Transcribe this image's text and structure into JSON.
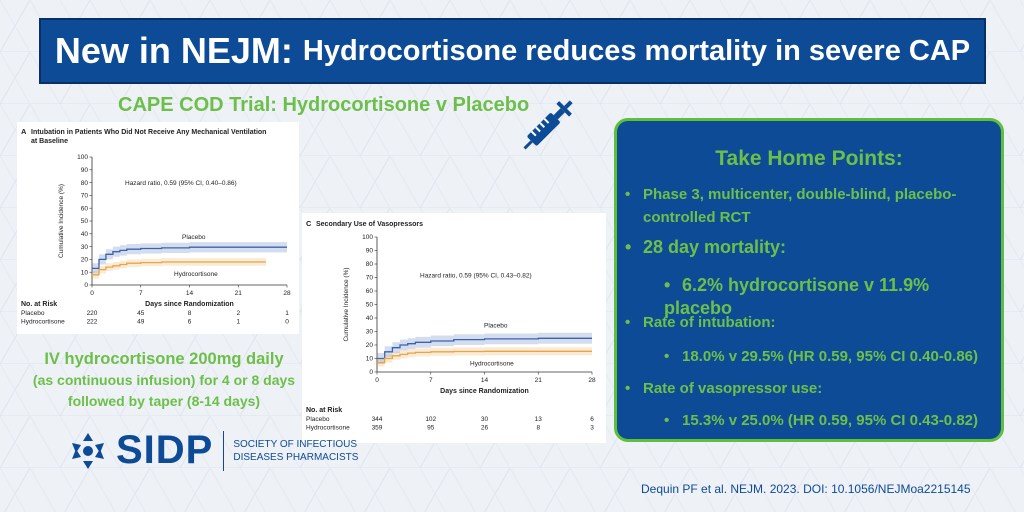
{
  "banner": {
    "title_strong": "New in NEJM:",
    "title_rest": "Hydrocortisone reduces mortality in severe CAP"
  },
  "trial_title": "CAPE COD Trial: Hydrocortisone v Placebo",
  "icons": {
    "syringe": "syringe-icon",
    "sidp_logo": "sidp-logo-icon"
  },
  "colors": {
    "navy": "#0d4b96",
    "green": "#6cc04a",
    "placebo": "#3a63ad",
    "hydrocortisone": "#e8a445"
  },
  "dosing": {
    "line1": "IV hydrocortisone 200mg daily",
    "line2": "(as continuous infusion) for 4 or 8 days",
    "line3": "followed by taper (8-14 days)"
  },
  "sidp": {
    "name": "SIDP",
    "society_line1": "SOCIETY OF INFECTIOUS",
    "society_line2": "DISEASES PHARMACISTS"
  },
  "take_home": {
    "heading": "Take Home Points:",
    "point1_l1": "Phase 3, multicenter, double-blind, placebo-",
    "point1_l2": "controlled RCT",
    "point2": "28 day mortality:",
    "point2_sub": "6.2% hydrocortisone  v 11.9% placebo",
    "point3": "Rate of intubation:",
    "point3_sub": "18.0% v 29.5% (HR 0.59, 95% CI 0.40-0.86)",
    "point4": "Rate of vasopressor use:",
    "point4_sub": "15.3% v 25.0% (HR 0.59, 95% CI 0.43-0.82)"
  },
  "reference": "Dequin PF et al. NEJM. 2023. DOI: 10.1056/NEJMoa2215145",
  "chart_data": [
    {
      "type": "line",
      "panel_letter": "A",
      "title_l1": "Intubation in Patients Who Did Not Receive Any Mechanical Ventilation",
      "title_l2": "at Baseline",
      "ylabel": "Cumulative Incidence (%)",
      "xlabel": "Days since Randomization",
      "xlim": [
        0,
        28
      ],
      "ylim": [
        0,
        100
      ],
      "x_ticks": [
        0,
        7,
        14,
        21,
        28
      ],
      "y_ticks": [
        0,
        10,
        20,
        30,
        40,
        50,
        60,
        70,
        80,
        90,
        100
      ],
      "hazard_text": "Hazard ratio, 0.59 (95% CI, 0.40–0.86)",
      "series": [
        {
          "name": "Placebo",
          "color": "#3a63ad",
          "x": [
            0,
            1,
            2,
            3,
            4,
            5,
            7,
            10,
            14,
            21,
            28
          ],
          "y": [
            13,
            20,
            24,
            26,
            27,
            28,
            28.5,
            29,
            29.5,
            29.5,
            29.5
          ],
          "ci_width": 4
        },
        {
          "name": "Hydrocortisone",
          "color": "#e8a445",
          "x": [
            0,
            1,
            2,
            3,
            4,
            5,
            7,
            10,
            14,
            21,
            25
          ],
          "y": [
            8,
            12,
            14,
            15,
            16,
            17,
            17.5,
            18,
            18,
            18,
            18
          ],
          "ci_width": 3
        }
      ],
      "at_risk_title": "No. at Risk",
      "at_risk": [
        {
          "label": "Placebo",
          "values": [
            "220",
            "45",
            "8",
            "2",
            "1"
          ]
        },
        {
          "label": "Hydrocortisone",
          "values": [
            "222",
            "49",
            "6",
            "1",
            "0"
          ]
        }
      ]
    },
    {
      "type": "line",
      "panel_letter": "C",
      "title_l1": "Secondary Use of Vasopressors",
      "ylabel": "Cumulative Incidence (%)",
      "xlabel": "Days since Randomization",
      "xlim": [
        0,
        28
      ],
      "ylim": [
        0,
        100
      ],
      "x_ticks": [
        0,
        7,
        14,
        21,
        28
      ],
      "y_ticks": [
        0,
        10,
        20,
        30,
        40,
        50,
        60,
        70,
        80,
        90,
        100
      ],
      "hazard_text": "Hazard ratio, 0.59 (95% CI, 0.43–0.82)",
      "series": [
        {
          "name": "Placebo",
          "color": "#3a63ad",
          "x": [
            0,
            1,
            2,
            3,
            4,
            5,
            7,
            10,
            14,
            21,
            28
          ],
          "y": [
            10,
            15,
            18,
            20,
            21,
            22,
            23,
            24,
            24.5,
            25,
            25
          ],
          "ci_width": 4
        },
        {
          "name": "Hydrocortisone",
          "color": "#e8a445",
          "x": [
            0,
            1,
            2,
            3,
            4,
            5,
            7,
            10,
            14,
            21,
            28
          ],
          "y": [
            7,
            10,
            12,
            13,
            14,
            14.5,
            15,
            15.2,
            15.3,
            15.3,
            15.3
          ],
          "ci_width": 3
        }
      ],
      "at_risk_title": "No. at Risk",
      "at_risk": [
        {
          "label": "Placebo",
          "values": [
            "344",
            "102",
            "30",
            "13",
            "6"
          ]
        },
        {
          "label": "Hydrocortisone",
          "values": [
            "359",
            "95",
            "26",
            "8",
            "3"
          ]
        }
      ]
    }
  ]
}
